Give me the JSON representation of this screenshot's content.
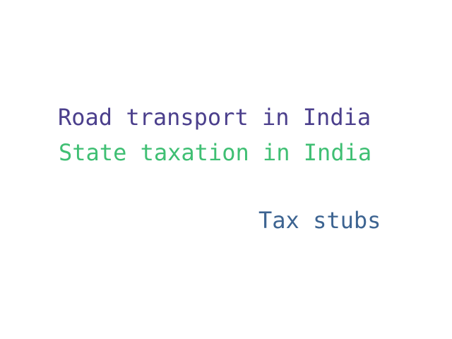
{
  "terms": [
    {
      "text": "Road transport in India",
      "color": "#4b3f8c"
    },
    {
      "text": "State taxation in India",
      "color": "#3fbf73"
    },
    {
      "text": "Tax stubs",
      "color": "#3d6491"
    }
  ]
}
